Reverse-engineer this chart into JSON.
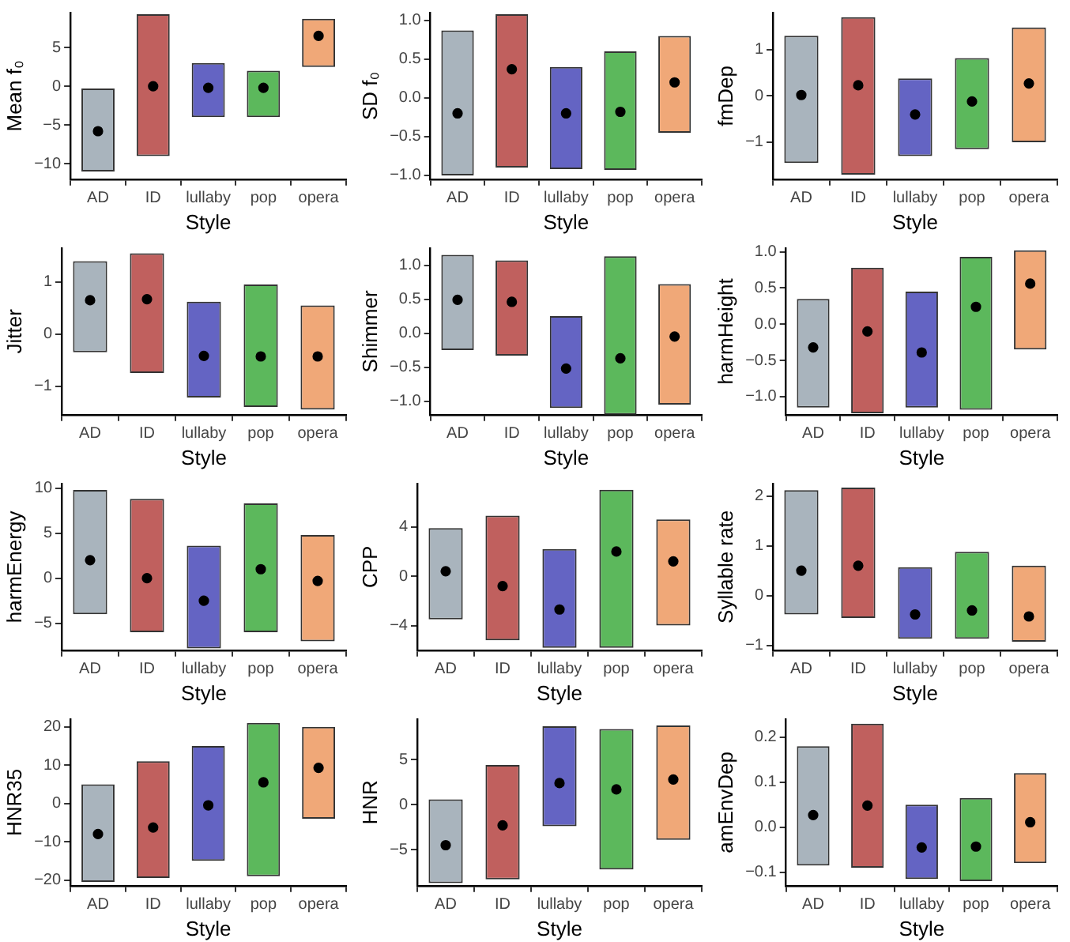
{
  "chart_data": [
    {
      "type": "bar",
      "xlabel": "Style",
      "ylabel": "Mean f₀",
      "categories": [
        "AD",
        "ID",
        "lullaby",
        "pop",
        "opera"
      ],
      "ylim": [
        -12,
        9.5
      ],
      "grid": false,
      "legend": false,
      "yticks": [
        -10,
        -5,
        0,
        5
      ],
      "series": [
        {
          "type": "bar",
          "base": [
            -11,
            -9,
            -4,
            -4,
            2.5
          ],
          "values": [
            10.7,
            18.3,
            7,
            6,
            6.2
          ],
          "colors": [
            "#a9b4bd",
            "#c0605e",
            "#6464c3",
            "#5cb85c",
            "#f0a878"
          ]
        },
        {
          "type": "scatter",
          "marker": "circle",
          "color": "#000000",
          "x": [
            "AD",
            "ID",
            "lullaby",
            "pop",
            "opera"
          ],
          "values": [
            -5.8,
            0,
            -0.2,
            -0.2,
            6.5
          ]
        }
      ]
    },
    {
      "type": "bar",
      "xlabel": "Style",
      "ylabel": "SD f₀",
      "categories": [
        "AD",
        "ID",
        "lullaby",
        "pop",
        "opera"
      ],
      "ylim": [
        -1.05,
        1.1
      ],
      "yticks": [
        {
          "value": -1,
          "label": "−1.0"
        },
        -0.5,
        {
          "value": 0,
          "label": "0.0"
        },
        0.5,
        {
          "value": 1,
          "label": "1.0"
        }
      ],
      "series": [
        {
          "type": "bar",
          "base": [
            -1,
            -0.9,
            -0.92,
            -0.93,
            -0.45
          ],
          "values": [
            1.87,
            1.98,
            1.32,
            1.53,
            1.25
          ],
          "colors": [
            "#a9b4bd",
            "#c0605e",
            "#6464c3",
            "#5cb85c",
            "#f0a878"
          ]
        },
        {
          "type": "scatter",
          "marker": "circle",
          "color": "#000000",
          "x": [
            "AD",
            "ID",
            "lullaby",
            "pop",
            "opera"
          ],
          "values": [
            -0.2,
            0.37,
            -0.2,
            -0.18,
            0.2
          ]
        }
      ]
    },
    {
      "type": "bar",
      "xlabel": "Style",
      "ylabel": "fmDep",
      "categories": [
        "AD",
        "ID",
        "lullaby",
        "pop",
        "opera"
      ],
      "ylim": [
        -1.8,
        1.8
      ],
      "yticks": [
        -1,
        0,
        1
      ],
      "series": [
        {
          "type": "bar",
          "base": [
            -1.45,
            -1.7,
            -1.3,
            -1.15,
            -1
          ],
          "values": [
            2.75,
            3.4,
            1.68,
            1.97,
            2.48
          ],
          "colors": [
            "#a9b4bd",
            "#c0605e",
            "#6464c3",
            "#5cb85c",
            "#f0a878"
          ]
        },
        {
          "type": "scatter",
          "marker": "circle",
          "color": "#000000",
          "x": [
            "AD",
            "ID",
            "lullaby",
            "pop",
            "opera"
          ],
          "values": [
            0.02,
            0.23,
            -0.4,
            -0.12,
            0.27
          ]
        }
      ]
    },
    {
      "type": "bar",
      "xlabel": "Style",
      "ylabel": "Jitter",
      "categories": [
        "AD",
        "ID",
        "lullaby",
        "pop",
        "opera"
      ],
      "ylim": [
        -1.55,
        1.65
      ],
      "yticks": [
        -1,
        0,
        1
      ],
      "series": [
        {
          "type": "bar",
          "base": [
            -0.35,
            -0.75,
            -1.22,
            -1.4,
            -1.45
          ],
          "values": [
            1.75,
            2.3,
            1.84,
            2.35,
            2
          ],
          "colors": [
            "#a9b4bd",
            "#c0605e",
            "#6464c3",
            "#5cb85c",
            "#f0a878"
          ]
        },
        {
          "type": "scatter",
          "marker": "circle",
          "color": "#000000",
          "x": [
            "AD",
            "ID",
            "lullaby",
            "pop",
            "opera"
          ],
          "values": [
            0.65,
            0.67,
            -0.42,
            -0.43,
            -0.43
          ]
        }
      ]
    },
    {
      "type": "bar",
      "xlabel": "Style",
      "ylabel": "Shimmer",
      "categories": [
        "AD",
        "ID",
        "lullaby",
        "pop",
        "opera"
      ],
      "ylim": [
        -1.2,
        1.25
      ],
      "yticks": [
        {
          "value": -1,
          "label": "−1.0"
        },
        -0.5,
        {
          "value": 0,
          "label": "0.0"
        },
        0.5,
        {
          "value": 1,
          "label": "1.0"
        }
      ],
      "series": [
        {
          "type": "bar",
          "base": [
            -0.25,
            -0.33,
            -1.1,
            -1.2,
            -1.05
          ],
          "values": [
            1.4,
            1.4,
            1.35,
            2.33,
            1.77
          ],
          "colors": [
            "#a9b4bd",
            "#c0605e",
            "#6464c3",
            "#5cb85c",
            "#f0a878"
          ]
        },
        {
          "type": "scatter",
          "marker": "circle",
          "color": "#000000",
          "x": [
            "AD",
            "ID",
            "lullaby",
            "pop",
            "opera"
          ],
          "values": [
            0.49,
            0.46,
            -0.52,
            -0.37,
            -0.05
          ]
        }
      ]
    },
    {
      "type": "bar",
      "xlabel": "Style",
      "ylabel": "harmHeight",
      "categories": [
        "AD",
        "ID",
        "lullaby",
        "pop",
        "opera"
      ],
      "ylim": [
        -1.25,
        1.05
      ],
      "yticks": [
        {
          "value": -1,
          "label": "−1.0"
        },
        -0.5,
        {
          "value": 0,
          "label": "0.0"
        },
        0.5,
        {
          "value": 1,
          "label": "1.0"
        }
      ],
      "series": [
        {
          "type": "bar",
          "base": [
            -1.15,
            -1.23,
            -1.15,
            -1.18,
            -0.35
          ],
          "values": [
            1.5,
            2.01,
            1.6,
            2.11,
            1.37
          ],
          "colors": [
            "#a9b4bd",
            "#c0605e",
            "#6464c3",
            "#5cb85c",
            "#f0a878"
          ]
        },
        {
          "type": "scatter",
          "marker": "circle",
          "color": "#000000",
          "x": [
            "AD",
            "ID",
            "lullaby",
            "pop",
            "opera"
          ],
          "values": [
            -0.32,
            -0.1,
            -0.39,
            0.24,
            0.56
          ]
        }
      ]
    },
    {
      "type": "bar",
      "xlabel": "Style",
      "ylabel": "harmEnergy",
      "categories": [
        "AD",
        "ID",
        "lullaby",
        "pop",
        "opera"
      ],
      "ylim": [
        -8,
        10.5
      ],
      "yticks": [
        -5,
        0,
        5,
        10
      ],
      "series": [
        {
          "type": "bar",
          "base": [
            -4,
            -6,
            -7.8,
            -6,
            -7
          ],
          "values": [
            13.8,
            14.8,
            11.4,
            14.3,
            11.8
          ],
          "colors": [
            "#a9b4bd",
            "#c0605e",
            "#6464c3",
            "#5cb85c",
            "#f0a878"
          ]
        },
        {
          "type": "scatter",
          "marker": "circle",
          "color": "#000000",
          "x": [
            "AD",
            "ID",
            "lullaby",
            "pop",
            "opera"
          ],
          "values": [
            2,
            0,
            -2.5,
            1,
            -0.3
          ]
        }
      ]
    },
    {
      "type": "bar",
      "xlabel": "Style",
      "ylabel": "CPP",
      "categories": [
        "AD",
        "ID",
        "lullaby",
        "pop",
        "opera"
      ],
      "ylim": [
        -6,
        7.5
      ],
      "yticks": [
        -4,
        0,
        4
      ],
      "series": [
        {
          "type": "bar",
          "base": [
            -3.5,
            -5.2,
            -5.8,
            -5.8,
            -4
          ],
          "values": [
            7.4,
            10.1,
            8,
            12.8,
            8.6
          ],
          "colors": [
            "#a9b4bd",
            "#c0605e",
            "#6464c3",
            "#5cb85c",
            "#f0a878"
          ]
        },
        {
          "type": "scatter",
          "marker": "circle",
          "color": "#000000",
          "x": [
            "AD",
            "ID",
            "lullaby",
            "pop",
            "opera"
          ],
          "values": [
            0.4,
            -0.8,
            -2.7,
            2,
            1.2
          ]
        }
      ]
    },
    {
      "type": "bar",
      "xlabel": "Style",
      "ylabel": "Syllable rate",
      "categories": [
        "AD",
        "ID",
        "lullaby",
        "pop",
        "opera"
      ],
      "ylim": [
        -1.1,
        2.25
      ],
      "yticks": [
        -1,
        0,
        1,
        2
      ],
      "series": [
        {
          "type": "bar",
          "base": [
            -0.38,
            -0.45,
            -0.87,
            -0.87,
            -0.93
          ],
          "values": [
            2.5,
            2.62,
            1.44,
            1.75,
            1.53
          ],
          "colors": [
            "#a9b4bd",
            "#c0605e",
            "#6464c3",
            "#5cb85c",
            "#f0a878"
          ]
        },
        {
          "type": "scatter",
          "marker": "circle",
          "color": "#000000",
          "x": [
            "AD",
            "ID",
            "lullaby",
            "pop",
            "opera"
          ],
          "values": [
            0.5,
            0.6,
            -0.38,
            -0.3,
            -0.42
          ]
        }
      ]
    },
    {
      "type": "bar",
      "xlabel": "Style",
      "ylabel": "HNR35",
      "categories": [
        "AD",
        "ID",
        "lullaby",
        "pop",
        "opera"
      ],
      "ylim": [
        -21.5,
        22
      ],
      "yticks": [
        -20,
        -10,
        0,
        10,
        20
      ],
      "series": [
        {
          "type": "bar",
          "base": [
            -20.5,
            -19.5,
            -15,
            -19,
            -4
          ],
          "values": [
            25.5,
            30.5,
            30,
            40,
            24
          ],
          "colors": [
            "#a9b4bd",
            "#c0605e",
            "#6464c3",
            "#5cb85c",
            "#f0a878"
          ]
        },
        {
          "type": "scatter",
          "marker": "circle",
          "color": "#000000",
          "x": [
            "AD",
            "ID",
            "lullaby",
            "pop",
            "opera"
          ],
          "values": [
            -8,
            -6.3,
            -0.5,
            5.5,
            9.3
          ]
        }
      ]
    },
    {
      "type": "bar",
      "xlabel": "Style",
      "ylabel": "HNR",
      "categories": [
        "AD",
        "ID",
        "lullaby",
        "pop",
        "opera"
      ],
      "ylim": [
        -9,
        9.5
      ],
      "yticks": [
        -5,
        0,
        5
      ],
      "series": [
        {
          "type": "bar",
          "base": [
            -8.7,
            -8.3,
            -2.4,
            -7.2,
            -3.9
          ],
          "values": [
            9.3,
            12.7,
            11.1,
            15.6,
            12.7
          ],
          "colors": [
            "#a9b4bd",
            "#c0605e",
            "#6464c3",
            "#5cb85c",
            "#f0a878"
          ]
        },
        {
          "type": "scatter",
          "marker": "circle",
          "color": "#000000",
          "x": [
            "AD",
            "ID",
            "lullaby",
            "pop",
            "opera"
          ],
          "values": [
            -4.5,
            -2.3,
            2.4,
            1.7,
            2.8
          ]
        }
      ]
    },
    {
      "type": "bar",
      "xlabel": "Style",
      "ylabel": "amEnvDep",
      "categories": [
        "AD",
        "ID",
        "lullaby",
        "pop",
        "opera"
      ],
      "ylim": [
        -0.13,
        0.24
      ],
      "yticks": [
        -0.1,
        {
          "value": 0,
          "label": "0.0"
        },
        0.1,
        0.2
      ],
      "series": [
        {
          "type": "bar",
          "base": [
            -0.085,
            -0.09,
            -0.115,
            -0.12,
            -0.08
          ],
          "values": [
            0.265,
            0.32,
            0.165,
            0.185,
            0.2
          ],
          "colors": [
            "#a9b4bd",
            "#c0605e",
            "#6464c3",
            "#5cb85c",
            "#f0a878"
          ]
        },
        {
          "type": "scatter",
          "marker": "circle",
          "color": "#000000",
          "x": [
            "AD",
            "ID",
            "lullaby",
            "pop",
            "opera"
          ],
          "values": [
            0.027,
            0.048,
            -0.045,
            -0.043,
            0.011
          ]
        }
      ]
    }
  ]
}
